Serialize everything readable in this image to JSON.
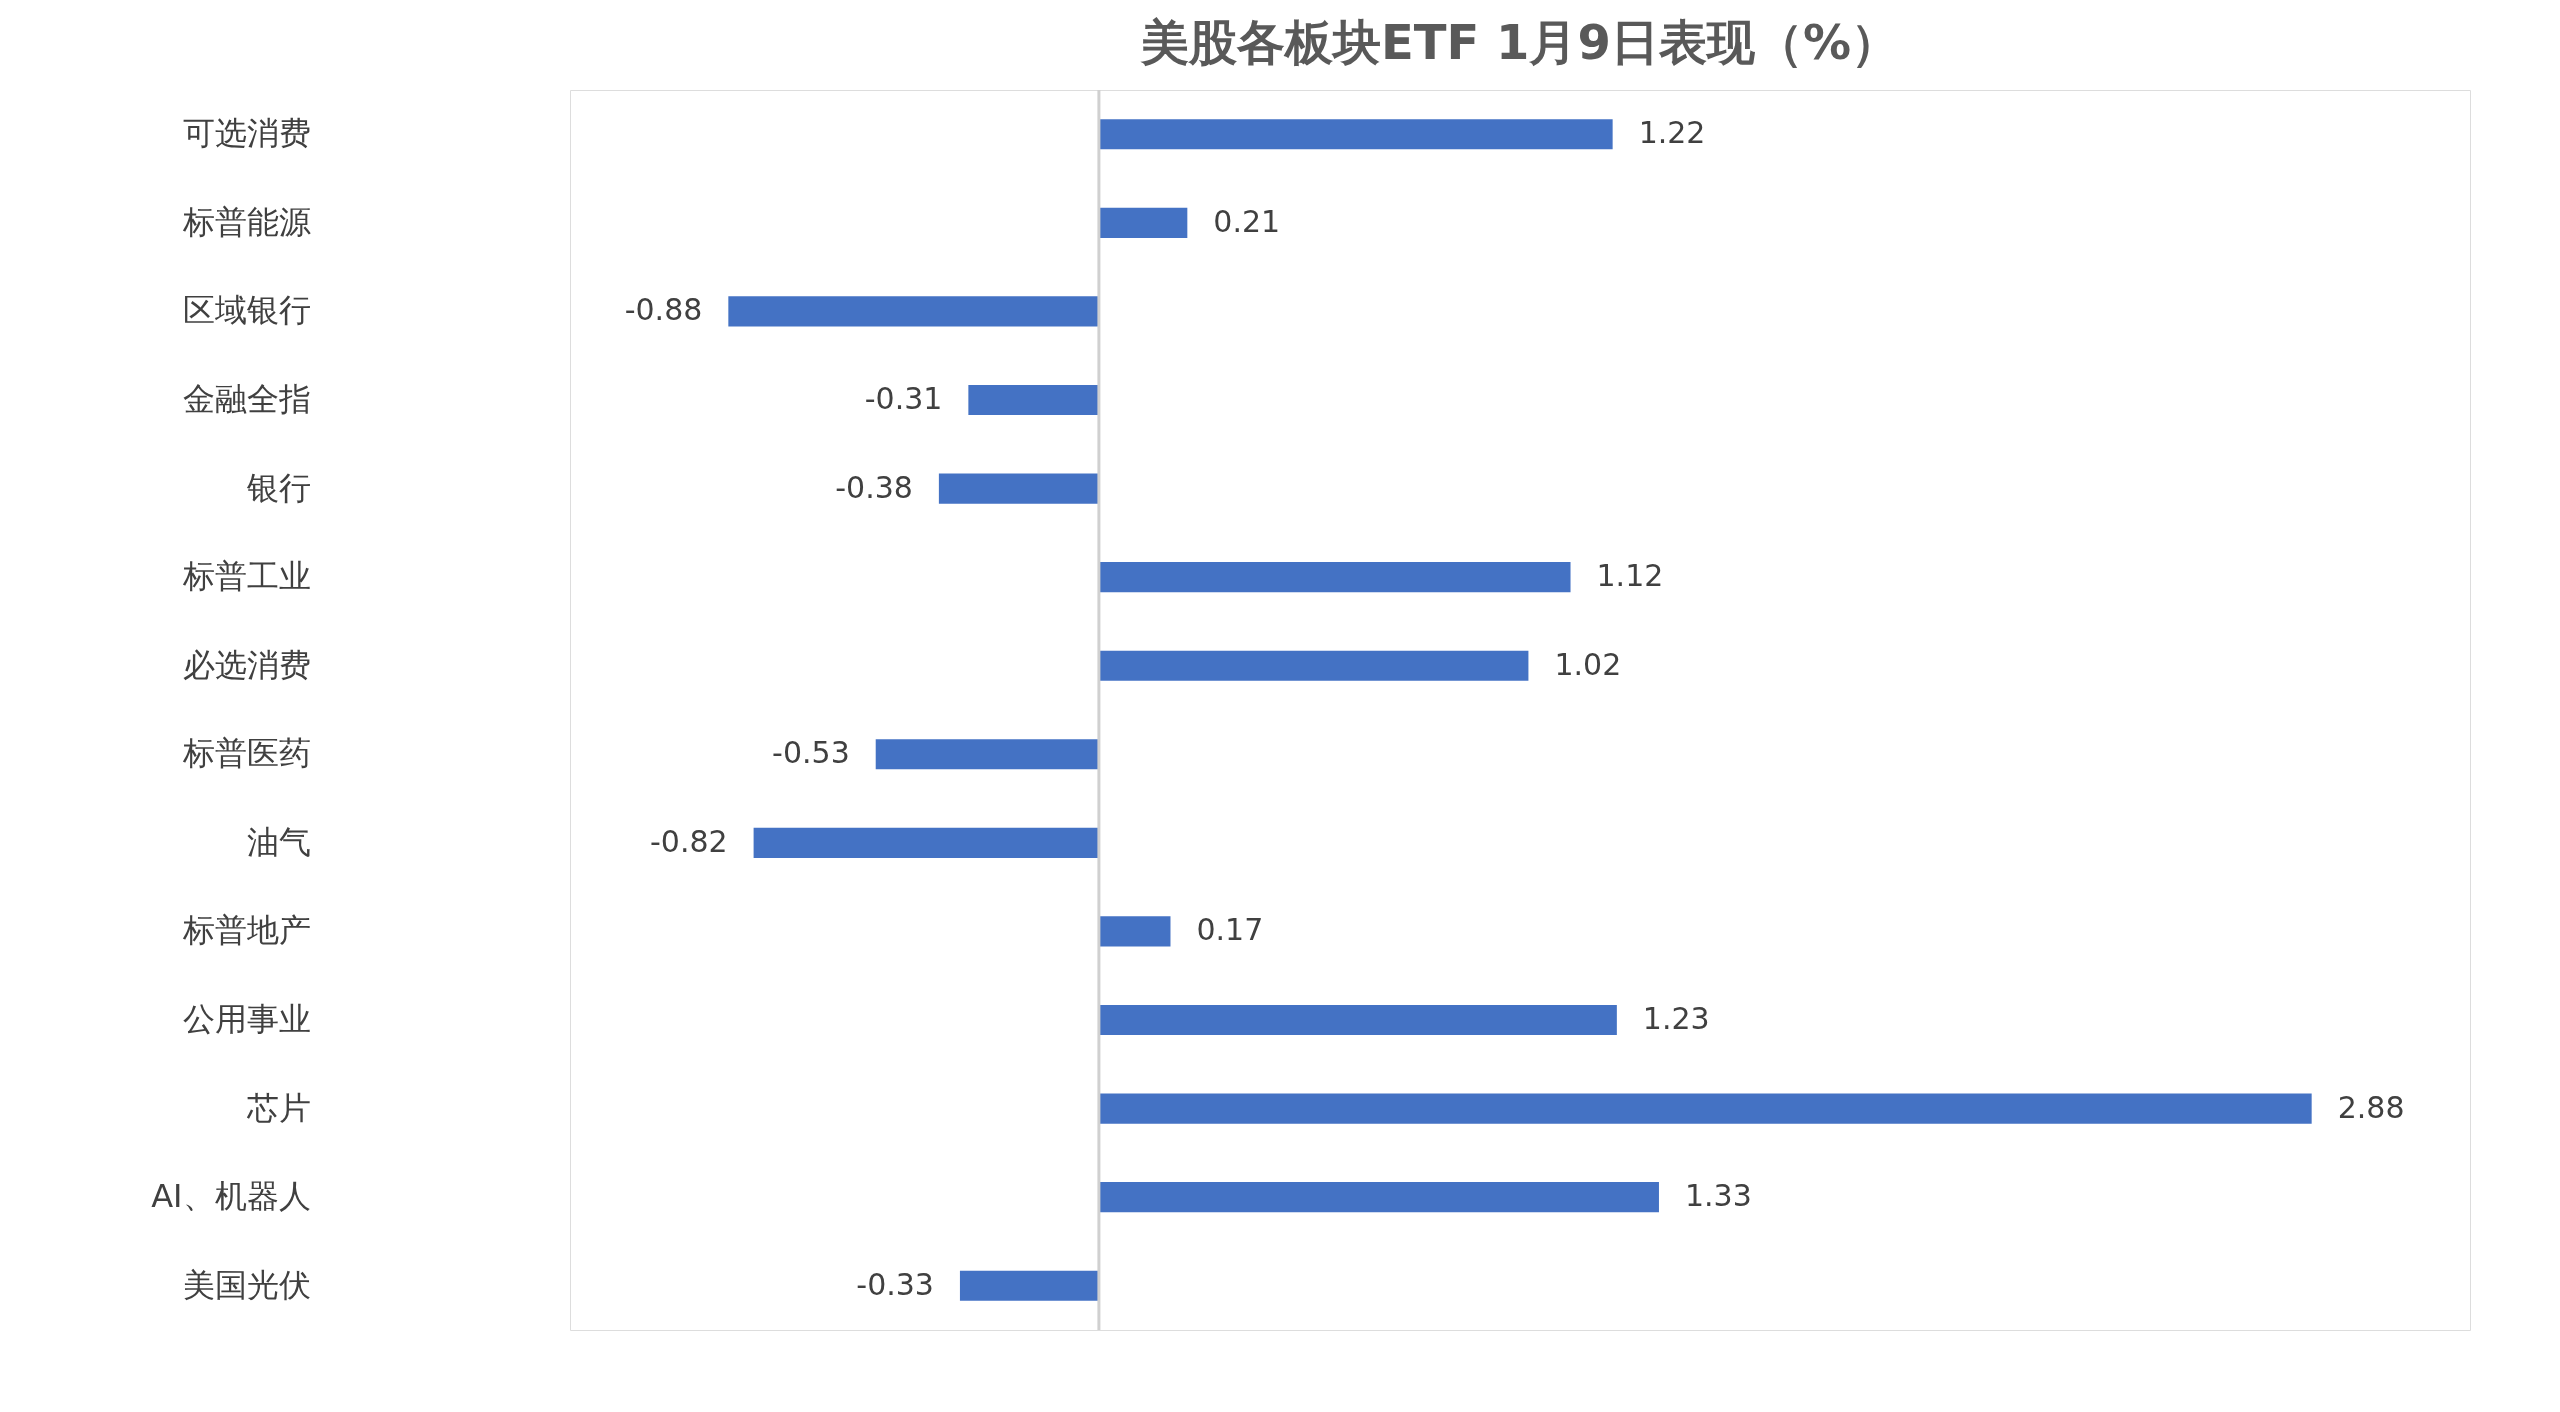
{
  "chart_data": {
    "type": "bar",
    "orientation": "horizontal",
    "title": "美股各板块ETF  1月9日表现（%）",
    "categories": [
      "可选消费",
      "标普能源",
      "区域银行",
      "金融全指",
      "银行",
      "标普工业",
      "必选消费",
      "标普医药",
      "油气",
      "标普地产",
      "公用事业",
      "芯片",
      "AI、机器人",
      "美国光伏"
    ],
    "values": [
      1.22,
      0.21,
      -0.88,
      -0.31,
      -0.38,
      1.12,
      1.02,
      -0.53,
      -0.82,
      0.17,
      1.23,
      2.88,
      1.33,
      -0.33
    ],
    "color": "#4472c4",
    "data_labels": true,
    "tick_labels": "y"
  }
}
